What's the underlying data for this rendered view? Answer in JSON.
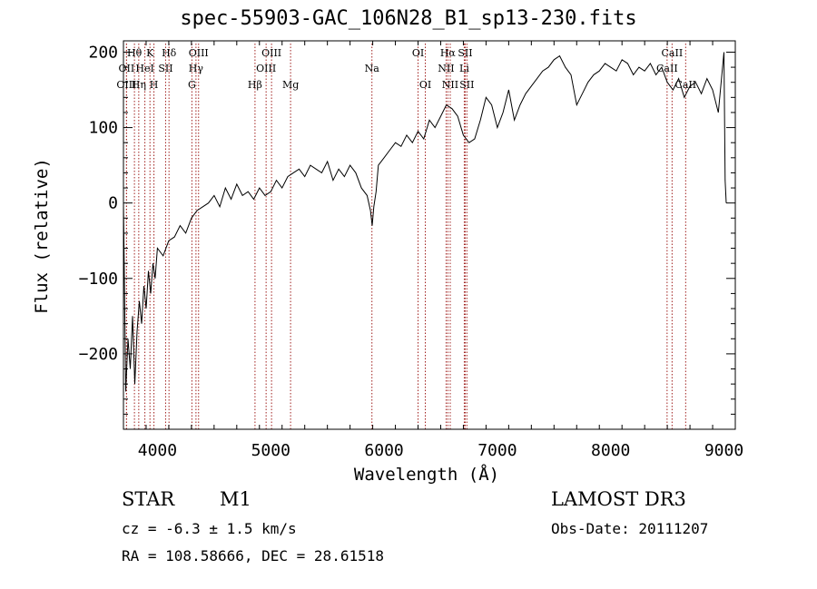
{
  "chart_data": {
    "type": "line",
    "title": "spec-55903-GAC_106N28_B1_sp13-230.fits",
    "xlabel": "Wavelength (Å)",
    "ylabel": "Flux (relative)",
    "xlim": [
      3700,
      9100
    ],
    "ylim": [
      -300,
      215
    ],
    "xticks": [
      4000,
      5000,
      6000,
      7000,
      8000,
      9000
    ],
    "yticks": [
      -200,
      -100,
      0,
      100,
      200
    ],
    "series": [
      {
        "name": "spectrum",
        "x": [
          3700,
          3720,
          3740,
          3760,
          3780,
          3800,
          3820,
          3840,
          3860,
          3880,
          3900,
          3920,
          3940,
          3960,
          3980,
          4000,
          4050,
          4100,
          4150,
          4200,
          4250,
          4300,
          4350,
          4400,
          4450,
          4500,
          4550,
          4600,
          4650,
          4700,
          4750,
          4800,
          4850,
          4900,
          4950,
          5000,
          5050,
          5100,
          5150,
          5200,
          5250,
          5300,
          5350,
          5400,
          5450,
          5500,
          5550,
          5600,
          5650,
          5700,
          5750,
          5800,
          5850,
          5880,
          5895,
          5910,
          5930,
          5950,
          6000,
          6050,
          6100,
          6150,
          6200,
          6250,
          6300,
          6350,
          6400,
          6450,
          6500,
          6550,
          6600,
          6650,
          6700,
          6750,
          6800,
          6850,
          6900,
          6950,
          7000,
          7050,
          7100,
          7150,
          7200,
          7250,
          7300,
          7350,
          7400,
          7450,
          7500,
          7550,
          7600,
          7650,
          7700,
          7750,
          7800,
          7850,
          7900,
          7950,
          8000,
          8050,
          8100,
          8150,
          8200,
          8250,
          8300,
          8350,
          8400,
          8450,
          8500,
          8550,
          8600,
          8650,
          8700,
          8750,
          8800,
          8850,
          8900,
          8950,
          9000,
          9010,
          9020
        ],
        "values": [
          0,
          -250,
          -180,
          -220,
          -150,
          -240,
          -170,
          -130,
          -160,
          -110,
          -140,
          -90,
          -120,
          -80,
          -100,
          -60,
          -70,
          -50,
          -45,
          -30,
          -40,
          -20,
          -10,
          -5,
          0,
          10,
          -5,
          20,
          5,
          25,
          10,
          15,
          5,
          20,
          10,
          15,
          30,
          20,
          35,
          40,
          45,
          35,
          50,
          45,
          40,
          55,
          30,
          45,
          35,
          50,
          40,
          20,
          10,
          -10,
          -30,
          -5,
          15,
          50,
          60,
          70,
          80,
          75,
          90,
          80,
          95,
          85,
          110,
          100,
          115,
          130,
          125,
          115,
          90,
          80,
          85,
          110,
          140,
          130,
          100,
          120,
          150,
          110,
          130,
          145,
          155,
          165,
          175,
          180,
          190,
          195,
          180,
          170,
          130,
          145,
          160,
          170,
          175,
          185,
          180,
          175,
          190,
          185,
          170,
          180,
          175,
          185,
          170,
          180,
          160,
          150,
          165,
          140,
          155,
          160,
          145,
          165,
          150,
          120,
          200,
          30,
          0
        ]
      }
    ],
    "lines": [
      {
        "label": "Hθ",
        "x": 3797,
        "row": 1
      },
      {
        "label": "OII",
        "x": 3727,
        "row": 2
      },
      {
        "label": "OIII",
        "x": 3727,
        "row": 3
      },
      {
        "label": "Hη",
        "x": 3835,
        "row": 3
      },
      {
        "label": "HeI",
        "x": 3889,
        "row": 2
      },
      {
        "label": "K",
        "x": 3934,
        "row": 1
      },
      {
        "label": "H",
        "x": 3969,
        "row": 3
      },
      {
        "label": "SII",
        "x": 4072,
        "row": 2
      },
      {
        "label": "Hδ",
        "x": 4102,
        "row": 1
      },
      {
        "label": "OIII",
        "x": 4363,
        "row": 1
      },
      {
        "label": "Hγ",
        "x": 4340,
        "row": 2
      },
      {
        "label": "G",
        "x": 4304,
        "row": 3
      },
      {
        "label": "Hβ",
        "x": 4861,
        "row": 3
      },
      {
        "label": "OIII",
        "x": 5007,
        "row": 1
      },
      {
        "label": "OIII",
        "x": 4959,
        "row": 2
      },
      {
        "label": "Mg",
        "x": 5175,
        "row": 3
      },
      {
        "label": "Na",
        "x": 5893,
        "row": 2
      },
      {
        "label": "OI",
        "x": 6300,
        "row": 1
      },
      {
        "label": "OI",
        "x": 6364,
        "row": 3
      },
      {
        "label": "Hα",
        "x": 6563,
        "row": 1
      },
      {
        "label": "SII",
        "x": 6716,
        "row": 1
      },
      {
        "label": "NII",
        "x": 6548,
        "row": 2
      },
      {
        "label": "Li",
        "x": 6708,
        "row": 2
      },
      {
        "label": "NII",
        "x": 6584,
        "row": 3
      },
      {
        "label": "SII",
        "x": 6731,
        "row": 3
      },
      {
        "label": "CaII",
        "x": 8542,
        "row": 1
      },
      {
        "label": "CaII",
        "x": 8498,
        "row": 2
      },
      {
        "label": "CaII",
        "x": 8662,
        "row": 3
      }
    ]
  },
  "footer": {
    "class": "STAR",
    "subclass": "M1",
    "survey": "LAMOST DR3",
    "cz": "cz = -6.3 ± 1.5 km/s",
    "obs_date": "Obs-Date: 20111207",
    "radec": "RA = 108.58666, DEC =  28.61518"
  },
  "colors": {
    "spectrum": "#000000",
    "line_marker": "#a0201e"
  }
}
